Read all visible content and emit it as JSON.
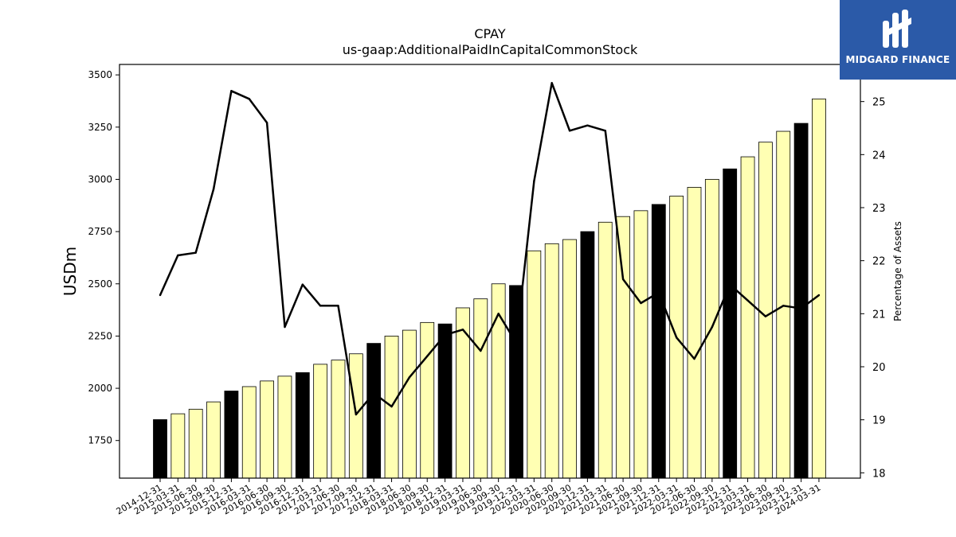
{
  "chart_data": {
    "type": "bar",
    "title": "CPAY",
    "subtitle": "us-gaap:AdditionalPaidInCapitalCommonStock",
    "ylabel": "USDm",
    "y2label": "Percentage of Assets",
    "ylim": [
      1570,
      3550
    ],
    "y2lim": [
      17.9,
      25.7
    ],
    "yticks": [
      1750,
      2000,
      2250,
      2500,
      2750,
      3000,
      3250,
      3500
    ],
    "y2ticks": [
      18,
      19,
      20,
      21,
      22,
      23,
      24,
      25
    ],
    "colors": {
      "annual": "#000000",
      "quarter": "#ffffb3",
      "line": "#000000"
    },
    "categories": [
      "2014-12-31",
      "2015-03-31",
      "2015-06-30",
      "2015-09-30",
      "2015-12-31",
      "2016-03-31",
      "2016-06-30",
      "2016-09-30",
      "2016-12-31",
      "2017-03-31",
      "2017-06-30",
      "2017-09-30",
      "2017-12-31",
      "2018-03-31",
      "2018-06-30",
      "2018-09-30",
      "2018-12-31",
      "2019-03-31",
      "2019-06-30",
      "2019-09-30",
      "2019-12-31",
      "2020-03-31",
      "2020-06-30",
      "2020-09-30",
      "2020-12-31",
      "2021-03-31",
      "2021-06-30",
      "2021-09-30",
      "2021-12-31",
      "2022-03-31",
      "2022-06-30",
      "2022-09-30",
      "2022-12-31",
      "2023-03-31",
      "2023-06-30",
      "2023-09-30",
      "2023-12-31",
      "2024-03-31"
    ],
    "series": [
      {
        "type": "bar",
        "values": [
          1850,
          1878,
          1900,
          1935,
          1987,
          2008,
          2035,
          2058,
          2075,
          2115,
          2135,
          2165,
          2215,
          2250,
          2278,
          2315,
          2308,
          2385,
          2428,
          2500,
          2492,
          2658,
          2692,
          2712,
          2750,
          2795,
          2822,
          2850,
          2880,
          2920,
          2962,
          3000,
          3050,
          3108,
          3178,
          3230,
          3268,
          3385
        ],
        "annual": [
          true,
          false,
          false,
          false,
          true,
          false,
          false,
          false,
          true,
          false,
          false,
          false,
          true,
          false,
          false,
          false,
          true,
          false,
          false,
          false,
          true,
          false,
          false,
          false,
          true,
          false,
          false,
          false,
          true,
          false,
          false,
          false,
          true,
          false,
          false,
          false,
          true,
          false
        ]
      },
      {
        "type": "line",
        "axis": "right",
        "values": [
          21.35,
          22.1,
          22.15,
          23.35,
          25.2,
          25.05,
          24.6,
          20.75,
          21.55,
          21.15,
          21.15,
          19.1,
          19.5,
          19.25,
          19.8,
          20.2,
          20.6,
          20.7,
          20.3,
          21.0,
          20.45,
          23.5,
          25.35,
          24.45,
          24.55,
          24.45,
          21.65,
          21.2,
          21.4,
          20.55,
          20.15,
          20.75,
          21.55,
          21.25,
          20.95,
          21.15,
          21.1,
          21.35
        ]
      }
    ]
  },
  "logo": {
    "text": "MIDGARD FINANCE"
  }
}
